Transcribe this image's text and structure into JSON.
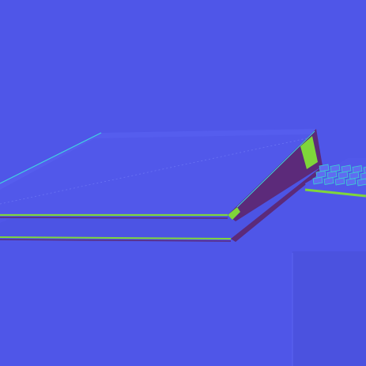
{
  "scene": {
    "description_label": "",
    "colors": {
      "background": "#4f56e8",
      "top_face": "#5158ea",
      "top_face_highlight": "#5a62f0",
      "edge_dark": "#4a2a8c",
      "edge_green": "#7fd63a",
      "edge_cyan": "#3fd6e0",
      "side_face": "#5c2a7a",
      "lower_plate": "#4c54e4",
      "keyboard_key": "#5f6cf2",
      "keyboard_edge": "#3bd2d0",
      "floor_shadow": "#4b52df"
    },
    "objects": [
      {
        "name": "laptop-lid",
        "kind": "flat-slab"
      },
      {
        "name": "laptop-base",
        "kind": "flat-slab"
      },
      {
        "name": "keyboard-corner",
        "kind": "keyboard"
      },
      {
        "name": "floor-region",
        "kind": "plane"
      }
    ]
  }
}
